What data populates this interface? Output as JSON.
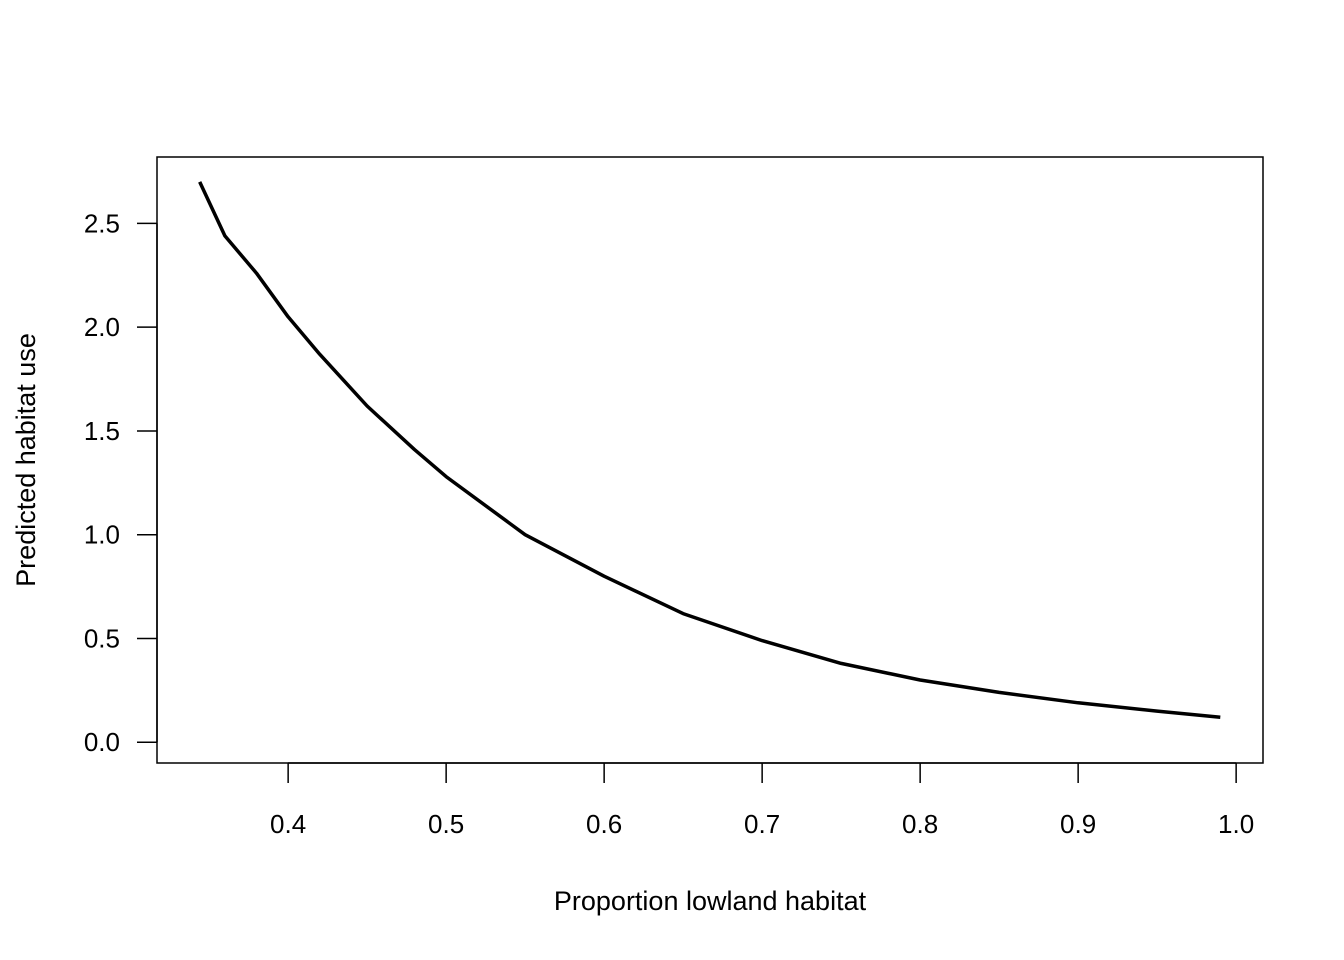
{
  "chart_data": {
    "type": "line",
    "title": "",
    "xlabel": "Proportion lowland habitat",
    "ylabel": "Predicted habitat use",
    "xlim": [
      0.317,
      1.017
    ],
    "ylim": [
      -0.1,
      2.82
    ],
    "x_ticks": [
      0.4,
      0.5,
      0.6,
      0.7,
      0.8,
      0.9,
      1.0
    ],
    "x_tick_labels": [
      "0.4",
      "0.5",
      "0.6",
      "0.7",
      "0.8",
      "0.9",
      "1.0"
    ],
    "y_ticks": [
      0.0,
      0.5,
      1.0,
      1.5,
      2.0,
      2.5
    ],
    "y_tick_labels": [
      "0.0",
      "0.5",
      "1.0",
      "1.5",
      "2.0",
      "2.5"
    ],
    "grid": false,
    "legend": "none",
    "line_color": "#000000",
    "series": [
      {
        "x": [
          0.344,
          0.36,
          0.38,
          0.4,
          0.42,
          0.45,
          0.48,
          0.5,
          0.55,
          0.6,
          0.65,
          0.7,
          0.75,
          0.8,
          0.85,
          0.9,
          0.95,
          0.99
        ],
        "y": [
          2.7,
          2.44,
          2.26,
          2.05,
          1.87,
          1.62,
          1.41,
          1.28,
          1.0,
          0.8,
          0.62,
          0.49,
          0.38,
          0.3,
          0.24,
          0.19,
          0.15,
          0.12
        ]
      }
    ]
  }
}
